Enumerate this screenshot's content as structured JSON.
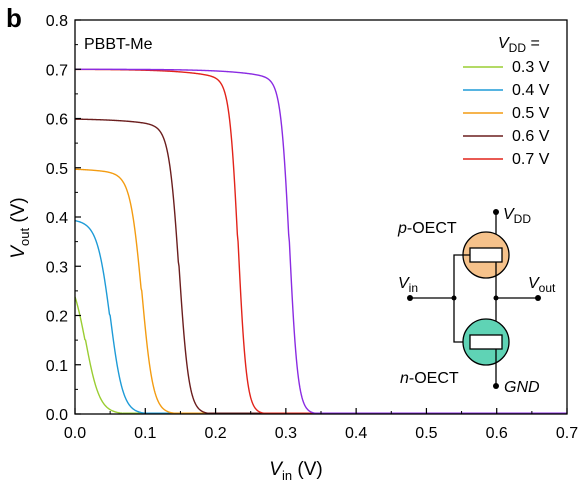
{
  "panel_letter": "b",
  "chart_data": {
    "type": "line",
    "annotation": "PBBT-Me",
    "xlabel": {
      "main": "V",
      "sub": "in",
      "unit": " (V)"
    },
    "ylabel": {
      "main": "V",
      "sub": "out",
      "unit": " (V)"
    },
    "xlim": [
      0,
      0.7
    ],
    "ylim": [
      0,
      0.8
    ],
    "xticks": [
      "0.0",
      "0.1",
      "0.2",
      "0.3",
      "0.4",
      "0.5",
      "0.6",
      "0.7"
    ],
    "yticks": [
      "0.0",
      "0.1",
      "0.2",
      "0.3",
      "0.4",
      "0.5",
      "0.6",
      "0.7",
      "0.8"
    ],
    "legend_title": {
      "main": "V",
      "sub": "DD",
      "suffix": " ="
    },
    "legend_position": "top-right",
    "grid": false,
    "series": [
      {
        "name": "0.3 V",
        "color": "#9ACD32",
        "vdd": 0.3,
        "switch_vin": 0.015
      },
      {
        "name": "0.4 V",
        "color": "#1E9BD7",
        "vdd": 0.4,
        "switch_vin": 0.05
      },
      {
        "name": "0.5 V",
        "color": "#F39C12",
        "vdd": 0.5,
        "switch_vin": 0.095
      },
      {
        "name": "0.6 V",
        "color": "#6B1E1E",
        "vdd": 0.6,
        "switch_vin": 0.148
      },
      {
        "name": "0.7 V",
        "color": "#E2231A",
        "vdd": 0.7,
        "switch_vin": 0.232
      }
    ],
    "extra_curve": {
      "color": "#8A2BE2",
      "vdd": 0.7,
      "switch_vin": 0.305
    },
    "inset": {
      "p_label": {
        "main": "p",
        "suffix": "-OECT"
      },
      "n_label": {
        "main": "n",
        "suffix": "-OECT"
      },
      "vdd_label": {
        "main": "V",
        "sub": "DD"
      },
      "vin_label": {
        "main": "V",
        "sub": "in"
      },
      "vout_label": {
        "main": "V",
        "sub": "out"
      },
      "gnd_label": "GND",
      "p_color": "#F6C28B",
      "n_color": "#5FD3B5"
    }
  }
}
